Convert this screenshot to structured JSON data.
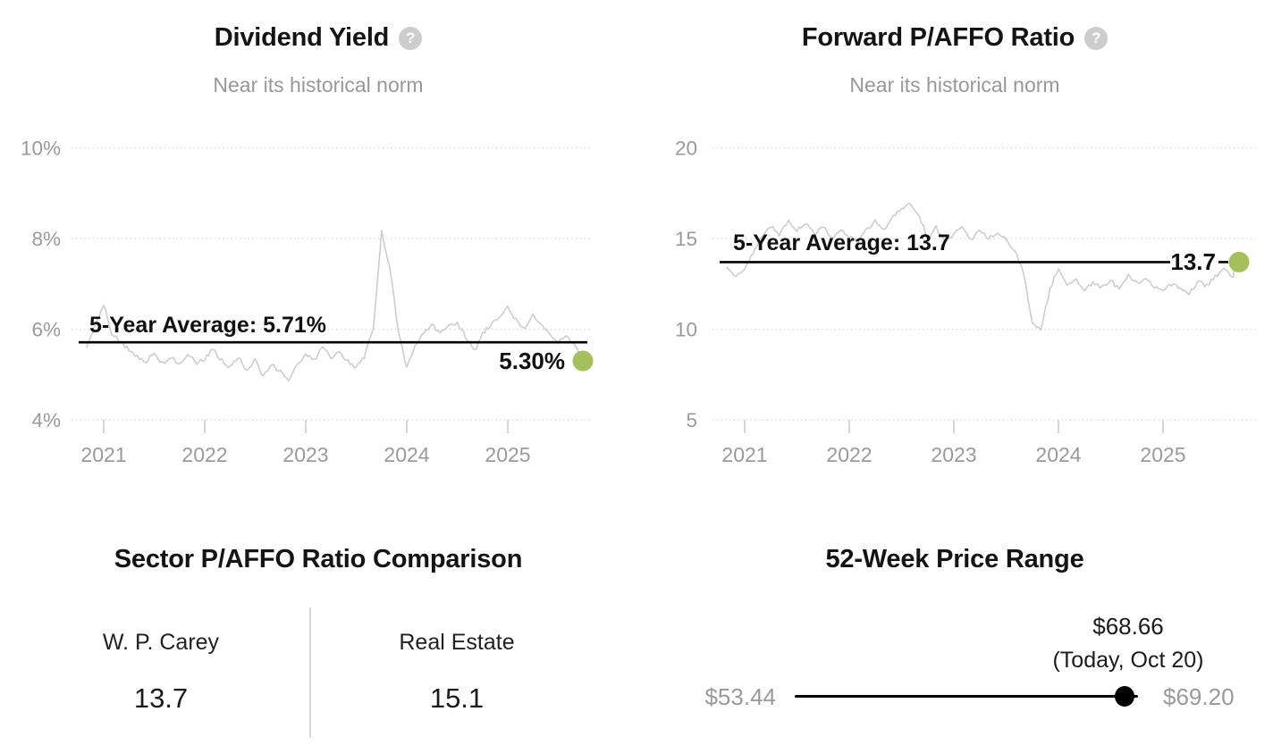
{
  "colors": {
    "accent_green": "#a3c05c",
    "series_gray": "#cdcdcd",
    "grid_gray": "#d8d8d8",
    "axis_gray": "#9a9a9a",
    "average_line_black": "#000000",
    "help_icon_gray": "#cdcdcd"
  },
  "icons": {
    "help_glyph": "?"
  },
  "dividend_yield": {
    "title": "Dividend Yield",
    "subtitle": "Near its historical norm",
    "avg_label": "5-Year Average: 5.71%",
    "current_label": "5.30%"
  },
  "forward_paffo": {
    "title": "Forward P/AFFO Ratio",
    "subtitle": "Near its historical norm",
    "avg_label": "5-Year Average: 13.7",
    "current_label": "13.7"
  },
  "sector_comparison": {
    "title": "Sector P/AFFO Ratio Comparison",
    "items": [
      {
        "label": "W. P. Carey",
        "value": "13.7"
      },
      {
        "label": "Real Estate",
        "value": "15.1"
      }
    ]
  },
  "price_range": {
    "title": "52-Week Price Range",
    "low": "$53.44",
    "high": "$69.20",
    "current": "$68.66",
    "current_note": "(Today, Oct 20)"
  },
  "chart_data": [
    {
      "type": "line",
      "title": "Dividend Yield",
      "subtitle": "Near its historical norm",
      "series_name": "Dividend Yield (%)",
      "ylim": [
        4,
        10
      ],
      "ytick_values": [
        10,
        8,
        6,
        4
      ],
      "ytick_labels": [
        "10%",
        "8%",
        "6%",
        "4%"
      ],
      "xtick_values": [
        2021,
        2022,
        2023,
        2024,
        2025
      ],
      "xtick_labels": [
        "2021",
        "2022",
        "2023",
        "2024",
        "2025"
      ],
      "grid": "dotted-horizontal",
      "legend": "none",
      "avg_value": 5.71,
      "avg_label": "5-Year Average: 5.71%",
      "current_value": 5.3,
      "current_label": "5.30%",
      "x": [
        2020.83,
        2020.92,
        2021.0,
        2021.08,
        2021.17,
        2021.25,
        2021.33,
        2021.42,
        2021.5,
        2021.58,
        2021.67,
        2021.75,
        2021.83,
        2021.92,
        2022.0,
        2022.08,
        2022.17,
        2022.25,
        2022.33,
        2022.42,
        2022.5,
        2022.58,
        2022.67,
        2022.75,
        2022.83,
        2022.92,
        2023.0,
        2023.08,
        2023.17,
        2023.25,
        2023.33,
        2023.42,
        2023.5,
        2023.58,
        2023.67,
        2023.75,
        2023.83,
        2023.92,
        2024.0,
        2024.08,
        2024.17,
        2024.25,
        2024.33,
        2024.42,
        2024.5,
        2024.58,
        2024.67,
        2024.75,
        2024.83,
        2024.92,
        2025.0,
        2025.08,
        2025.17,
        2025.25,
        2025.33,
        2025.42,
        2025.5,
        2025.58,
        2025.67,
        2025.75
      ],
      "values": [
        5.6,
        6.1,
        6.55,
        5.9,
        5.7,
        5.55,
        5.4,
        5.3,
        5.5,
        5.25,
        5.4,
        5.2,
        5.45,
        5.25,
        5.35,
        5.55,
        5.3,
        5.15,
        5.4,
        5.05,
        5.3,
        4.95,
        5.2,
        5.05,
        4.9,
        5.2,
        5.45,
        5.3,
        5.6,
        5.35,
        5.5,
        5.3,
        5.15,
        5.4,
        6.0,
        8.15,
        7.4,
        5.9,
        5.15,
        5.6,
        5.95,
        6.1,
        5.9,
        6.05,
        6.15,
        5.85,
        5.5,
        5.9,
        6.1,
        6.3,
        6.5,
        6.2,
        6.0,
        6.35,
        6.1,
        5.85,
        5.7,
        5.9,
        5.6,
        5.3
      ]
    },
    {
      "type": "line",
      "title": "Forward P/AFFO Ratio",
      "subtitle": "Near its historical norm",
      "series_name": "Forward P/AFFO Ratio",
      "ylim": [
        5,
        20
      ],
      "ytick_values": [
        20,
        15,
        10,
        5
      ],
      "ytick_labels": [
        "20",
        "15",
        "10",
        "5"
      ],
      "xtick_values": [
        2021,
        2022,
        2023,
        2024,
        2025
      ],
      "xtick_labels": [
        "2021",
        "2022",
        "2023",
        "2024",
        "2025"
      ],
      "grid": "dotted-horizontal",
      "legend": "none",
      "avg_value": 13.7,
      "avg_label": "5-Year Average: 13.7",
      "current_value": 13.7,
      "current_label": "13.7",
      "x": [
        2020.83,
        2020.92,
        2021.0,
        2021.08,
        2021.17,
        2021.25,
        2021.33,
        2021.42,
        2021.5,
        2021.58,
        2021.67,
        2021.75,
        2021.83,
        2021.92,
        2022.0,
        2022.08,
        2022.17,
        2022.25,
        2022.33,
        2022.42,
        2022.5,
        2022.58,
        2022.67,
        2022.75,
        2022.83,
        2022.92,
        2023.0,
        2023.08,
        2023.17,
        2023.25,
        2023.33,
        2023.42,
        2023.5,
        2023.58,
        2023.67,
        2023.75,
        2023.83,
        2023.92,
        2024.0,
        2024.08,
        2024.17,
        2024.25,
        2024.33,
        2024.42,
        2024.5,
        2024.58,
        2024.67,
        2024.75,
        2024.83,
        2024.92,
        2025.0,
        2025.08,
        2025.17,
        2025.25,
        2025.33,
        2025.42,
        2025.5,
        2025.58,
        2025.67,
        2025.75
      ],
      "values": [
        13.4,
        12.9,
        13.3,
        14.2,
        15.1,
        15.7,
        15.2,
        16.0,
        15.4,
        15.9,
        15.2,
        15.7,
        14.9,
        15.4,
        15.1,
        14.8,
        15.5,
        16.0,
        15.4,
        16.2,
        16.6,
        16.9,
        16.3,
        14.9,
        15.6,
        14.8,
        15.2,
        15.7,
        14.9,
        15.5,
        15.0,
        15.3,
        14.9,
        14.4,
        13.0,
        10.4,
        10.0,
        12.2,
        13.4,
        12.4,
        12.7,
        12.1,
        12.6,
        12.3,
        12.7,
        12.2,
        13.0,
        12.5,
        12.8,
        12.3,
        12.1,
        12.5,
        12.3,
        12.0,
        12.6,
        12.4,
        12.9,
        13.3,
        12.9,
        13.7
      ]
    },
    {
      "type": "table",
      "title": "Sector P/AFFO Ratio Comparison",
      "columns": [
        "W. P. Carey",
        "Real Estate"
      ],
      "values": [
        13.7,
        15.1
      ]
    },
    {
      "type": "table",
      "title": "52-Week Price Range",
      "min": 53.44,
      "max": 69.2,
      "current": 68.66,
      "current_date": "Today, Oct 20"
    }
  ]
}
